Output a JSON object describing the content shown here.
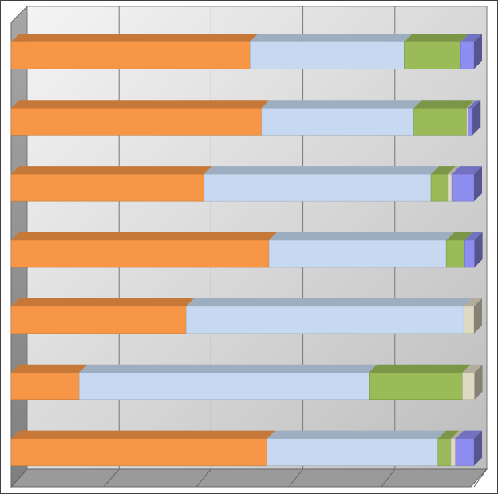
{
  "chart_data": {
    "type": "stacked-bar-3d",
    "categories": [
      null,
      null,
      null,
      null,
      null,
      null,
      null
    ],
    "series": [
      {
        "color": "#f79646",
        "values": [
          51.6,
          54.1,
          41.7,
          55.7,
          37.8,
          14.7,
          55.3
        ]
      },
      {
        "color": "#c6d9f1",
        "values": [
          33.3,
          32.9,
          49.0,
          38.3,
          60.0,
          62.6,
          36.9
        ]
      },
      {
        "color": "#9bbb59",
        "values": [
          12.2,
          11.4,
          3.6,
          4.0,
          0,
          20.2,
          2.8
        ]
      },
      {
        "color": "#ddd9c3",
        "values": [
          0,
          0.3,
          0.9,
          0,
          2.2,
          2.6,
          1.0
        ]
      },
      {
        "color": "#8e8ef0",
        "values": [
          2.9,
          1.0,
          4.8,
          2.1,
          0,
          0,
          4.0
        ]
      }
    ],
    "xlim": [
      0,
      100
    ],
    "xticks": [
      0,
      20,
      40,
      60,
      80,
      100
    ],
    "grid": true
  }
}
